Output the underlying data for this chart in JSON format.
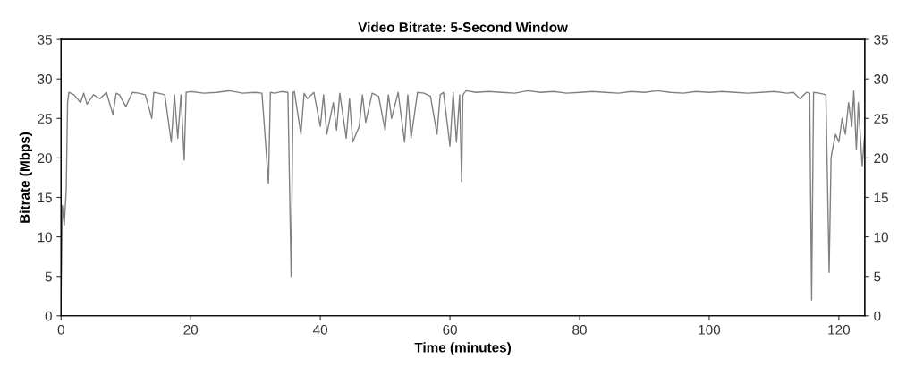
{
  "chart_data": {
    "type": "line",
    "title": "Video Bitrate: 5-Second Window",
    "xlabel": "Time (minutes)",
    "ylabel": "Bitrate (Mbps)",
    "xlim": [
      0,
      124
    ],
    "ylim": [
      0,
      35
    ],
    "xticks": [
      0,
      20,
      40,
      60,
      80,
      100,
      120
    ],
    "yticks": [
      0,
      5,
      10,
      15,
      20,
      25,
      30,
      35
    ],
    "y2lim": [
      0,
      35
    ],
    "y2ticks": [
      0,
      5,
      10,
      15,
      20,
      25,
      30,
      35
    ],
    "grid": false,
    "legend": false,
    "line_style": "solid",
    "marker": "none",
    "series": [
      {
        "color": "#808080",
        "x": [
          0,
          0.2,
          0.5,
          0.8,
          1.0,
          1.2,
          2,
          3,
          3.5,
          4,
          5,
          6,
          7,
          8,
          8.5,
          9,
          10,
          11,
          12,
          13,
          14,
          14.3,
          15,
          16,
          17,
          17.5,
          18,
          18.5,
          19,
          19.3,
          20,
          22,
          24,
          26,
          28,
          30,
          31,
          32,
          32.3,
          33,
          34,
          35,
          35.5,
          35.8,
          36,
          37,
          37.5,
          38,
          39,
          40,
          40.5,
          41,
          42,
          42.5,
          43,
          44,
          44.5,
          45,
          46,
          46.5,
          47,
          48,
          49,
          50,
          50.5,
          51,
          52,
          53,
          53.5,
          54,
          55,
          56,
          57,
          58,
          58.5,
          59,
          60,
          60.5,
          61,
          61.5,
          61.8,
          62,
          62.5,
          64,
          66,
          68,
          70,
          72,
          74,
          76,
          78,
          80,
          82,
          84,
          86,
          88,
          90,
          92,
          94,
          96,
          98,
          100,
          102,
          104,
          106,
          108,
          110,
          112,
          113,
          114,
          115,
          115.5,
          115.8,
          116.1,
          117,
          118,
          118.5,
          118.8,
          119,
          119.5,
          120,
          120.5,
          121,
          121.5,
          122,
          122.3,
          122.7,
          123,
          123.3,
          123.6,
          124
        ],
        "values": [
          2.5,
          14,
          11.5,
          16,
          27,
          28.3,
          28,
          27,
          28.2,
          26.8,
          28,
          27.5,
          28.3,
          25.5,
          28.2,
          28,
          26.5,
          28.3,
          28.2,
          28,
          25,
          28.3,
          28.2,
          28,
          22,
          28,
          22.5,
          28,
          19.7,
          28.3,
          28.4,
          28.2,
          28.3,
          28.5,
          28.2,
          28.3,
          28.2,
          16.8,
          28.3,
          28.2,
          28.4,
          28.3,
          5,
          28.3,
          28.4,
          23,
          28.2,
          27.5,
          28.3,
          24,
          28,
          23,
          27,
          23.5,
          28.2,
          22.5,
          27.5,
          22,
          24,
          28,
          24.5,
          28.2,
          27.8,
          23.5,
          28,
          25,
          28.3,
          22,
          28,
          22.5,
          28.3,
          28.2,
          27.8,
          23,
          28,
          28.3,
          21.5,
          28.3,
          22,
          28,
          17,
          28,
          28.5,
          28.3,
          28.4,
          28.3,
          28.2,
          28.5,
          28.3,
          28.4,
          28.2,
          28.3,
          28.4,
          28.3,
          28.2,
          28.4,
          28.3,
          28.5,
          28.3,
          28.2,
          28.4,
          28.3,
          28.4,
          28.3,
          28.2,
          28.3,
          28.4,
          28.2,
          28.3,
          27.5,
          28.3,
          28.2,
          2,
          28.3,
          28.2,
          28,
          5.5,
          20,
          21,
          23,
          22,
          25,
          23,
          27,
          24,
          28.5,
          21,
          27,
          23,
          19,
          23
        ]
      }
    ]
  }
}
